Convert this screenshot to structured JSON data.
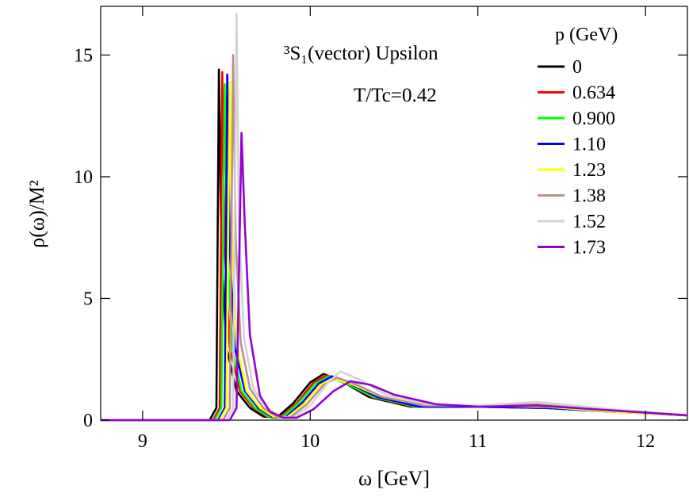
{
  "chart_data": {
    "type": "line",
    "title": "",
    "xlabel": "ω [GeV]",
    "ylabel": "ρ(ω)/M²",
    "xlim": [
      8.75,
      12.25
    ],
    "ylim": [
      0,
      17
    ],
    "x_ticks": [
      9,
      10,
      11,
      12
    ],
    "y_ticks": [
      0,
      5,
      10,
      15
    ],
    "x_tick_labels": [
      "9",
      "10",
      "11",
      "12"
    ],
    "y_tick_labels": [
      "0",
      "5",
      "10",
      "15"
    ],
    "grid": false,
    "legend_position": "top-right",
    "legend_title": "p (GeV)",
    "annotations": {
      "state": "³S₁(vector) Upsilon",
      "temperature": "T/Tc=0.42"
    },
    "series": [
      {
        "name": "0",
        "color": "#000000",
        "x": [
          8.75,
          9.4,
          9.44,
          9.455,
          9.47,
          9.5,
          9.56,
          9.64,
          9.72,
          9.8,
          9.9,
          10.0,
          10.08,
          10.2,
          10.35,
          10.6,
          11.0,
          11.4,
          11.8,
          12.25
        ],
        "y": [
          0,
          0,
          0.5,
          14.4,
          7.0,
          3.0,
          1.2,
          0.5,
          0.15,
          0.1,
          0.7,
          1.55,
          1.9,
          1.55,
          0.95,
          0.55,
          0.55,
          0.5,
          0.35,
          0.2
        ]
      },
      {
        "name": "0.634",
        "color": "#ff0000",
        "x": [
          8.75,
          9.42,
          9.46,
          9.475,
          9.49,
          9.52,
          9.58,
          9.66,
          9.74,
          9.82,
          9.92,
          10.02,
          10.1,
          10.22,
          10.37,
          10.62,
          11.0,
          11.4,
          11.8,
          12.25
        ],
        "y": [
          0,
          0,
          0.5,
          14.3,
          7.0,
          3.0,
          1.2,
          0.5,
          0.15,
          0.1,
          0.7,
          1.55,
          1.85,
          1.5,
          0.95,
          0.55,
          0.55,
          0.5,
          0.35,
          0.2
        ]
      },
      {
        "name": "0.900",
        "color": "#00ff00",
        "x": [
          8.75,
          9.43,
          9.47,
          9.49,
          9.505,
          9.535,
          9.59,
          9.67,
          9.75,
          9.83,
          9.93,
          10.03,
          10.11,
          10.23,
          10.38,
          10.63,
          11.0,
          11.4,
          11.8,
          12.25
        ],
        "y": [
          0,
          0,
          0.5,
          13.8,
          7.0,
          3.0,
          1.2,
          0.5,
          0.15,
          0.1,
          0.7,
          1.5,
          1.8,
          1.45,
          0.95,
          0.55,
          0.55,
          0.5,
          0.35,
          0.2
        ]
      },
      {
        "name": "1.10",
        "color": "#0000ff",
        "x": [
          8.75,
          9.45,
          9.49,
          9.505,
          9.52,
          9.55,
          9.61,
          9.69,
          9.77,
          9.85,
          9.95,
          10.05,
          10.13,
          10.25,
          10.4,
          10.65,
          11.0,
          11.4,
          11.8,
          12.25
        ],
        "y": [
          0,
          0,
          0.5,
          14.2,
          7.0,
          3.0,
          1.2,
          0.5,
          0.15,
          0.1,
          0.7,
          1.5,
          1.8,
          1.45,
          0.95,
          0.55,
          0.55,
          0.5,
          0.35,
          0.2
        ]
      },
      {
        "name": "1.23",
        "color": "#ffff00",
        "x": [
          8.75,
          9.46,
          9.5,
          9.52,
          9.535,
          9.565,
          9.62,
          9.7,
          9.78,
          9.86,
          9.96,
          10.06,
          10.14,
          10.26,
          10.41,
          10.66,
          11.0,
          11.4,
          11.8,
          12.25
        ],
        "y": [
          0,
          0,
          0.5,
          13.9,
          7.0,
          3.0,
          1.2,
          0.5,
          0.15,
          0.1,
          0.65,
          1.45,
          1.7,
          1.45,
          1.0,
          0.65,
          0.6,
          0.55,
          0.35,
          0.2
        ]
      },
      {
        "name": "1.38",
        "color": "#bc8f8f",
        "x": [
          8.75,
          9.48,
          9.52,
          9.54,
          9.555,
          9.585,
          9.64,
          9.72,
          9.8,
          9.88,
          9.98,
          10.08,
          10.16,
          10.28,
          10.43,
          10.68,
          11.0,
          11.35,
          11.8,
          12.25
        ],
        "y": [
          0,
          0,
          0.5,
          15.0,
          7.5,
          3.2,
          1.3,
          0.5,
          0.15,
          0.1,
          0.65,
          1.45,
          1.75,
          1.45,
          0.95,
          0.6,
          0.6,
          0.65,
          0.4,
          0.2
        ]
      },
      {
        "name": "1.52",
        "color": "#d3d3d3",
        "x": [
          8.75,
          9.5,
          9.54,
          9.56,
          9.575,
          9.605,
          9.66,
          9.74,
          9.82,
          9.9,
          10.0,
          10.1,
          10.18,
          10.3,
          10.45,
          10.7,
          11.0,
          11.35,
          11.8,
          12.25
        ],
        "y": [
          0,
          0,
          0.5,
          16.7,
          8.0,
          3.4,
          1.3,
          0.5,
          0.15,
          0.1,
          0.6,
          1.5,
          2.0,
          1.65,
          1.05,
          0.65,
          0.6,
          0.75,
          0.45,
          0.2
        ]
      },
      {
        "name": "1.73",
        "color": "#9400d3",
        "x": [
          8.75,
          9.52,
          9.56,
          9.59,
          9.61,
          9.64,
          9.7,
          9.76,
          9.84,
          9.92,
          10.02,
          10.14,
          10.24,
          10.36,
          10.5,
          10.75,
          11.0,
          11.35,
          11.8,
          12.25
        ],
        "y": [
          0,
          0,
          0.5,
          11.8,
          8.0,
          3.5,
          1.0,
          0.35,
          0.1,
          0.1,
          0.45,
          1.2,
          1.6,
          1.45,
          1.05,
          0.65,
          0.55,
          0.6,
          0.4,
          0.2
        ]
      }
    ]
  }
}
